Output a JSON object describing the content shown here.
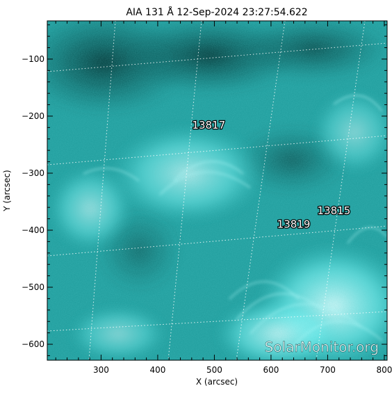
{
  "chart_data": {
    "type": "image",
    "title": "AIA 131 Å 12-Sep-2024 23:27:54.622",
    "xlabel": "X (arcsec)",
    "ylabel": "Y (arcsec)",
    "xlim": [
      205,
      805
    ],
    "ylim": [
      -628,
      -33
    ],
    "x_ticks": [
      300,
      400,
      500,
      600,
      700,
      800
    ],
    "y_ticks": [
      -100,
      -200,
      -300,
      -400,
      -500,
      -600
    ],
    "grid": "heliographic coordinate grid, dotted white lines",
    "colormap": "AIA 131 teal",
    "colors": {
      "dark": "#003333",
      "mid": "#1a9b9b",
      "bright": "#66ffff",
      "hot": "#ccffff",
      "axes": "#000000"
    },
    "active_regions": [
      {
        "label": "13817",
        "x": 490,
        "y": -222
      },
      {
        "label": "13815",
        "x": 711,
        "y": -372
      },
      {
        "label": "13819",
        "x": 640,
        "y": -396
      }
    ],
    "watermark": "SolarMonitor.org"
  }
}
